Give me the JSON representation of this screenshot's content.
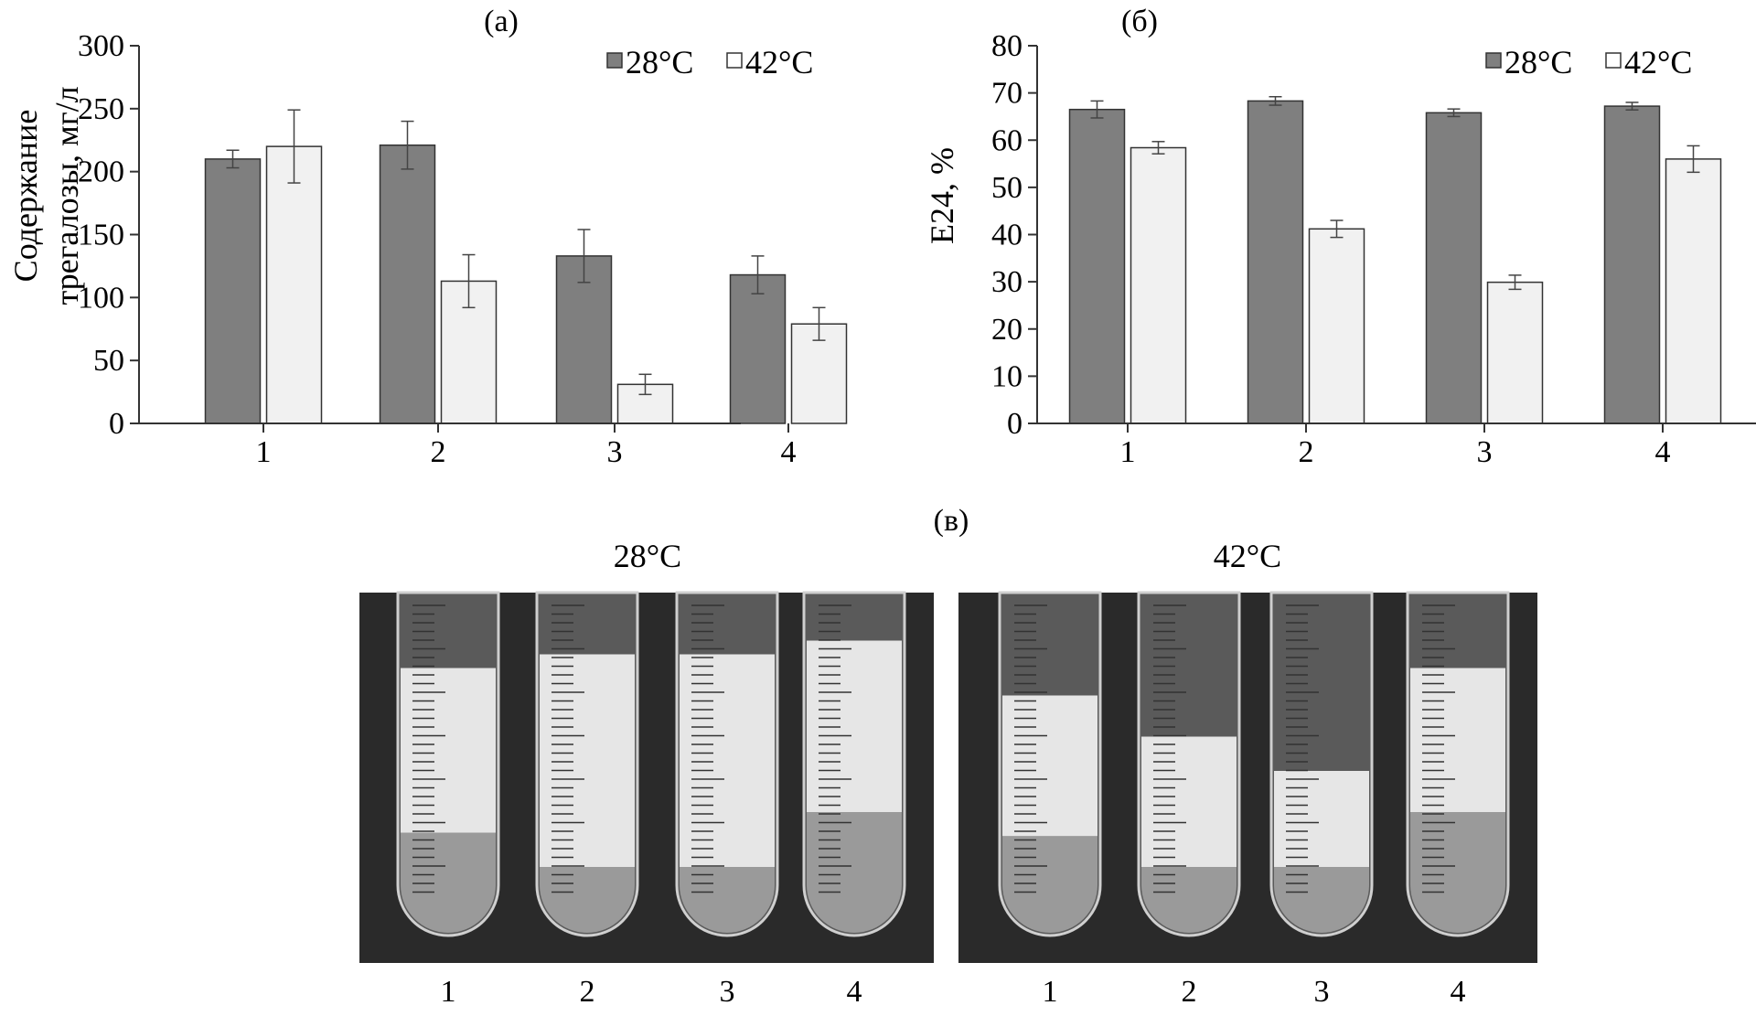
{
  "chart_data": [
    {
      "type": "bar",
      "panel_label": "(а)",
      "ylabel": "Содержание трегалозы, мг/л",
      "ylabel_lines": [
        "Содержание",
        "трегалозы, мг/л"
      ],
      "xlabel": "",
      "categories": [
        "1",
        "2",
        "3",
        "4"
      ],
      "ylim": [
        0,
        300
      ],
      "yticks": [
        "0",
        "50",
        "100",
        "150",
        "200",
        "250",
        "300"
      ],
      "legend_position": "top-right",
      "series": [
        {
          "name": "28°C",
          "color": "#7f7f7f",
          "values": [
            210,
            221,
            133,
            118
          ],
          "errors": [
            7,
            19,
            21,
            15
          ]
        },
        {
          "name": "42°C",
          "color": "#f1f1f1",
          "values": [
            220,
            113,
            31,
            79
          ],
          "errors": [
            29,
            21,
            8,
            13
          ]
        }
      ]
    },
    {
      "type": "bar",
      "panel_label": "(б)",
      "ylabel": "E24, %",
      "xlabel": "",
      "categories": [
        "1",
        "2",
        "3",
        "4"
      ],
      "ylim": [
        0,
        80
      ],
      "yticks": [
        "0",
        "10",
        "20",
        "30",
        "40",
        "50",
        "60",
        "70",
        "80"
      ],
      "legend_position": "top-right",
      "series": [
        {
          "name": "28°C",
          "color": "#7f7f7f",
          "values": [
            66.5,
            68.3,
            65.8,
            67.2
          ],
          "errors": [
            1.8,
            0.9,
            0.8,
            0.8
          ]
        },
        {
          "name": "42°C",
          "color": "#f1f1f1",
          "values": [
            58.4,
            41.2,
            29.9,
            56
          ],
          "errors": [
            1.3,
            1.8,
            1.5,
            2.8
          ]
        }
      ]
    }
  ],
  "photos": {
    "panel_label": "(в)",
    "groups": [
      {
        "title": "28°C",
        "tubes": [
          {
            "label": "1",
            "emulsion_top": 0.78,
            "emulsion_bottom": 0.3
          },
          {
            "label": "2",
            "emulsion_top": 0.82,
            "emulsion_bottom": 0.2
          },
          {
            "label": "3",
            "emulsion_top": 0.82,
            "emulsion_bottom": 0.2
          },
          {
            "label": "4",
            "emulsion_top": 0.86,
            "emulsion_bottom": 0.36
          }
        ]
      },
      {
        "title": "42°C",
        "tubes": [
          {
            "label": "1",
            "emulsion_top": 0.7,
            "emulsion_bottom": 0.29
          },
          {
            "label": "2",
            "emulsion_top": 0.58,
            "emulsion_bottom": 0.2
          },
          {
            "label": "3",
            "emulsion_top": 0.48,
            "emulsion_bottom": 0.2
          },
          {
            "label": "4",
            "emulsion_top": 0.78,
            "emulsion_bottom": 0.36
          }
        ]
      }
    ]
  },
  "colors": {
    "bar_28": "#7f7f7f",
    "bar_42": "#f1f1f1",
    "axis": "#333333",
    "photo_bg": "#2a2a2a",
    "emulsion": "#e6e6e6",
    "liquid": "#9a9a9a"
  }
}
